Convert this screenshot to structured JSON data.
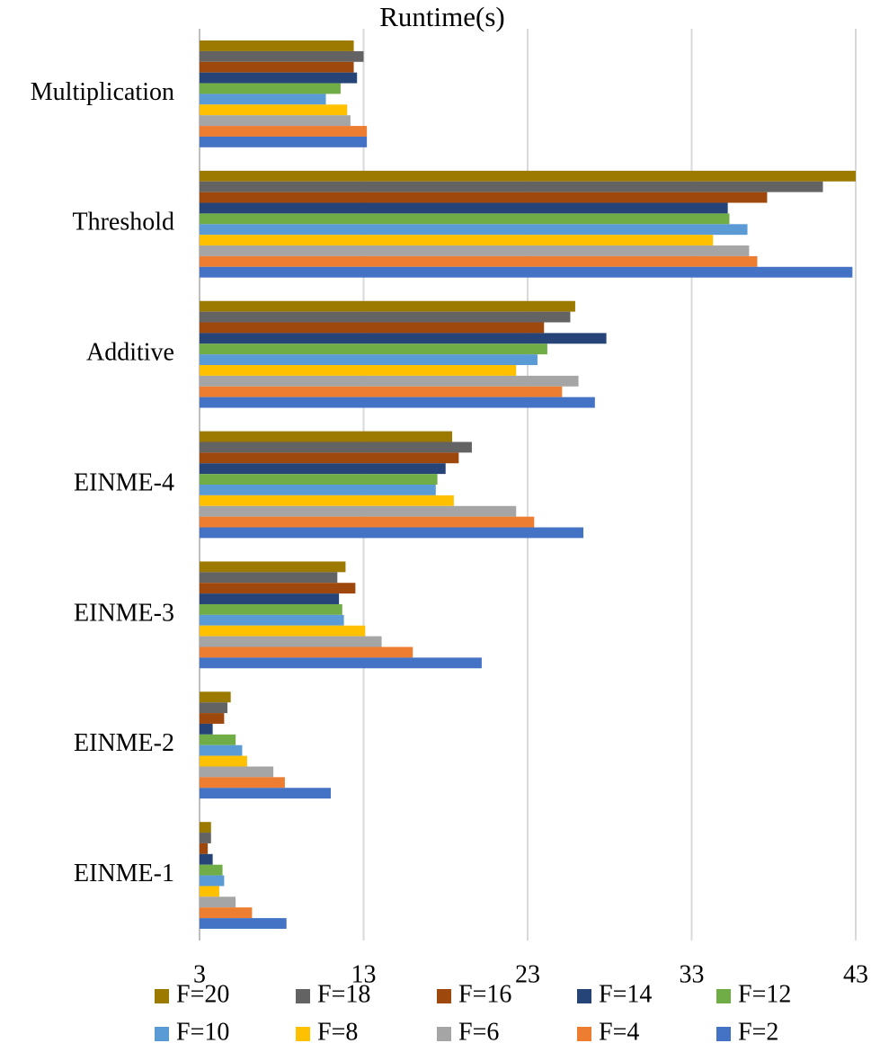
{
  "chart_data": {
    "type": "bar",
    "orientation": "horizontal",
    "title": "Runtime(s)",
    "categories": [
      "Multiplication",
      "Threshold",
      "Additive",
      "EINME-4",
      "EINME-3",
      "EINME-2",
      "EINME-1"
    ],
    "series": [
      {
        "name": "F=20",
        "color": "#9c7a00",
        "values": [
          12.4,
          43.0,
          25.9,
          18.4,
          11.9,
          4.9,
          3.7
        ]
      },
      {
        "name": "F=18",
        "color": "#636363",
        "values": [
          13.0,
          41.0,
          25.6,
          19.6,
          11.4,
          4.7,
          3.7
        ]
      },
      {
        "name": "F=16",
        "color": "#9e480e",
        "values": [
          12.4,
          37.6,
          24.0,
          18.8,
          12.5,
          4.5,
          3.5
        ]
      },
      {
        "name": "F=14",
        "color": "#264478",
        "values": [
          12.6,
          35.2,
          27.8,
          18.0,
          11.5,
          3.8,
          3.8
        ]
      },
      {
        "name": "F=12",
        "color": "#70ad47",
        "values": [
          11.6,
          35.3,
          24.2,
          17.5,
          11.7,
          5.2,
          4.4
        ]
      },
      {
        "name": "F=10",
        "color": "#5b9bd5",
        "values": [
          10.7,
          36.4,
          23.6,
          17.4,
          11.8,
          5.6,
          4.5
        ]
      },
      {
        "name": "F=8",
        "color": "#ffc000",
        "values": [
          12.0,
          34.3,
          22.3,
          18.5,
          13.1,
          5.9,
          4.2
        ]
      },
      {
        "name": "F=6",
        "color": "#a5a5a5",
        "values": [
          12.2,
          36.5,
          26.1,
          22.3,
          14.1,
          7.5,
          5.2
        ]
      },
      {
        "name": "F=4",
        "color": "#ed7d31",
        "values": [
          13.2,
          37.0,
          25.1,
          23.4,
          16.0,
          8.2,
          6.2
        ]
      },
      {
        "name": "F=2",
        "color": "#4472c4",
        "values": [
          13.2,
          42.8,
          27.1,
          26.4,
          20.2,
          11.0,
          8.3
        ]
      }
    ],
    "xlim": [
      3,
      43
    ],
    "xticks": [
      3,
      13,
      23,
      33,
      43
    ],
    "grid": true,
    "legend": "bottom"
  }
}
